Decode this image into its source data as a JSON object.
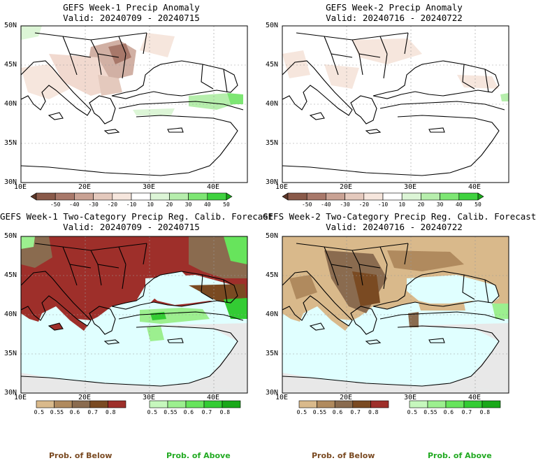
{
  "panels": [
    {
      "title": "GEFS Week-1 Precip Anomaly",
      "valid": "Valid: 20240709 - 20240715"
    },
    {
      "title": "GEFS Week-2 Precip Anomaly",
      "valid": "Valid: 20240716 - 20240722"
    },
    {
      "title": "GEFS Week-1 Two-Category Precip Reg. Calib. Forecast",
      "valid": "Valid: 20240709 - 20240715"
    },
    {
      "title": "GEFS Week-2 Two-Category Precip Reg. Calib. Forecast",
      "valid": "Valid: 20240716 - 20240722"
    }
  ],
  "axes": {
    "lat_labels": [
      "50N",
      "45N",
      "40N",
      "35N",
      "30N"
    ],
    "lon_labels": [
      "10E",
      "20E",
      "30E",
      "40E"
    ]
  },
  "anomaly_colorbar": {
    "labels": [
      "-50",
      "-40",
      "-30",
      "-20",
      "-10",
      "10",
      "20",
      "30",
      "40",
      "50"
    ],
    "colors": [
      "#5c3628",
      "#8a5a4a",
      "#a8786a",
      "#c9a294",
      "#e4c9bd",
      "#f6e6dd",
      "#ffffff",
      "#dcf5d6",
      "#b6eeac",
      "#7de673",
      "#3fd23f",
      "#1aa81a"
    ]
  },
  "below_colorbar": {
    "labels": [
      "0.5",
      "0.55",
      "0.6",
      "0.7",
      "0.8"
    ],
    "colors": [
      "#d9b98b",
      "#b08a5e",
      "#8a6b4f",
      "#7a4a22",
      "#9e2f2a"
    ]
  },
  "above_colorbar": {
    "labels": [
      "0.5",
      "0.55",
      "0.6",
      "0.7",
      "0.8"
    ],
    "colors": [
      "#c6f7bd",
      "#9cef8f",
      "#67e45c",
      "#33cc33",
      "#1aa81a"
    ]
  },
  "colors": {
    "sea": "#e0ffff",
    "land": "#ffffff",
    "no_signal": "#e8e8e8"
  },
  "footer": {
    "below_label": "Prob. of Below",
    "above_label": "Prob. of Above",
    "below_color": "#7a4a22",
    "above_color": "#22aa22"
  }
}
